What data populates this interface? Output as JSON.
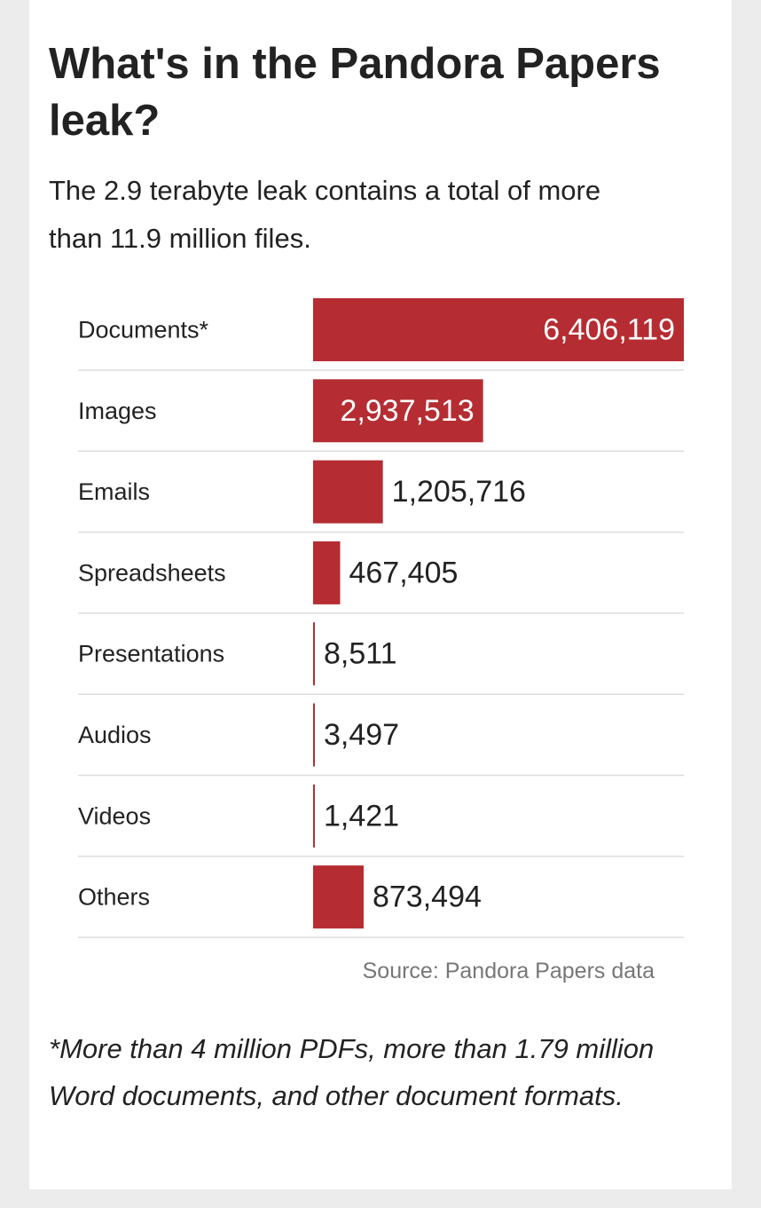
{
  "title": "What's in the Pandora Papers leak?",
  "subtitle": "The 2.9 terabyte leak contains a total of more than 11.9 million files.",
  "source": "Source: Pandora Papers data",
  "footnote": "*More than 4 million PDFs, more than 1.79 million Word documents, and other document formats.",
  "colors": {
    "bar": "#b52d32",
    "label_inside": "#ffffff",
    "label_outside": "#222222",
    "divider": "#dddddd"
  },
  "chart_data": {
    "type": "bar",
    "orientation": "horizontal",
    "title": "What's in the Pandora Papers leak?",
    "categories": [
      "Documents*",
      "Images",
      "Emails",
      "Spreadsheets",
      "Presentations",
      "Audios",
      "Videos",
      "Others"
    ],
    "values": [
      6406119,
      2937513,
      1205716,
      467405,
      8511,
      3497,
      1421,
      873494
    ],
    "value_labels": [
      "6,406,119",
      "2,937,513",
      "1,205,716",
      "467,405",
      "8,511",
      "3,497",
      "1,421",
      "873,494"
    ],
    "xlim": [
      0,
      6406119
    ],
    "grid": false,
    "legend": "none"
  }
}
